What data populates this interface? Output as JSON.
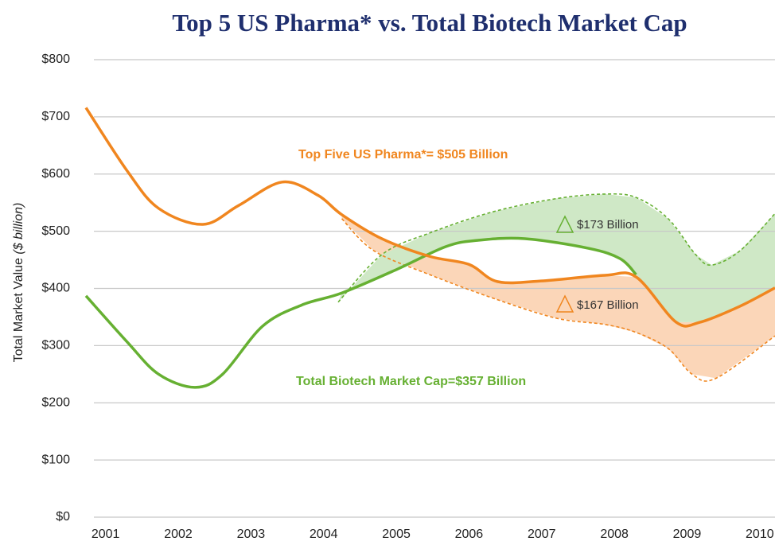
{
  "chart_data": {
    "type": "line",
    "title": "Top 5 US Pharma* vs. Total Biotech Market Cap",
    "ylabel": "Total Market Value",
    "ylabel_unit": "($ billion)",
    "xlim": [
      2000.73,
      2010.21
    ],
    "xticks": [
      2001,
      2002,
      2003,
      2004,
      2005,
      2006,
      2007,
      2008,
      2009,
      2010
    ],
    "ylim": [
      0,
      800
    ],
    "yticks": [
      {
        "value": 0,
        "label": "$0"
      },
      {
        "value": 100,
        "label": "$100"
      },
      {
        "value": 200,
        "label": "$200"
      },
      {
        "value": 300,
        "label": "$300"
      },
      {
        "value": 400,
        "label": "$400"
      },
      {
        "value": 500,
        "label": "$500"
      },
      {
        "value": 600,
        "label": "$600"
      },
      {
        "value": 700,
        "label": "$700"
      },
      {
        "value": 800,
        "label": "$800"
      }
    ],
    "grid": true,
    "series": [
      {
        "color": "#f0861f",
        "dashed": false,
        "x": [
          2000.73,
          2001.3,
          2001.73,
          2002.34,
          2002.83,
          2003.43,
          2003.92,
          2004.25,
          2004.8,
          2005.46,
          2006.0,
          2006.39,
          2006.99,
          2007.87,
          2008.3,
          2008.85,
          2009.18,
          2009.73,
          2010.21
        ],
        "values": [
          716,
          605,
          540,
          512,
          545,
          586,
          563,
          529,
          487,
          456,
          442,
          412,
          413,
          423,
          420,
          341,
          341,
          369,
          401
        ]
      },
      {
        "color": "#66b032",
        "dashed": false,
        "x": [
          2000.73,
          2001.3,
          2001.73,
          2002.23,
          2002.61,
          2003.16,
          2003.7,
          2004.25,
          2005.02,
          2005.68,
          2006.11,
          2006.77,
          2007.65,
          2008.08,
          2008.3
        ],
        "values": [
          387,
          306,
          250,
          227,
          250,
          334,
          371,
          392,
          434,
          473,
          484,
          487,
          470,
          452,
          424
        ]
      },
      {
        "color": "#66b032",
        "dashed": true,
        "band_color": "#cfe8c6",
        "x": [
          2004.2,
          2004.8,
          2005.46,
          2006.33,
          2007.2,
          2007.87,
          2008.3,
          2008.74,
          2009.12,
          2009.34,
          2009.73,
          2010.21
        ],
        "values": [
          376,
          459,
          497,
          534,
          557,
          565,
          559,
          522,
          459,
          441,
          466,
          531
        ]
      },
      {
        "color": "#f0861f",
        "dashed": true,
        "band_color": "#fbd6b8",
        "x": [
          2004.25,
          2004.69,
          2005.46,
          2006.33,
          2007.2,
          2007.87,
          2008.3,
          2008.74,
          2009.07,
          2009.4,
          2010.21
        ],
        "values": [
          522,
          466,
          424,
          383,
          348,
          337,
          323,
          295,
          250,
          243,
          317
        ]
      }
    ],
    "annotations": [
      {
        "text": "Top Five US Pharma*= $505 Billion"
      },
      {
        "text": "$173 Billion"
      },
      {
        "text": "$167 Billion"
      },
      {
        "text": "Total Biotech Market Cap=$357 Billion"
      }
    ]
  }
}
